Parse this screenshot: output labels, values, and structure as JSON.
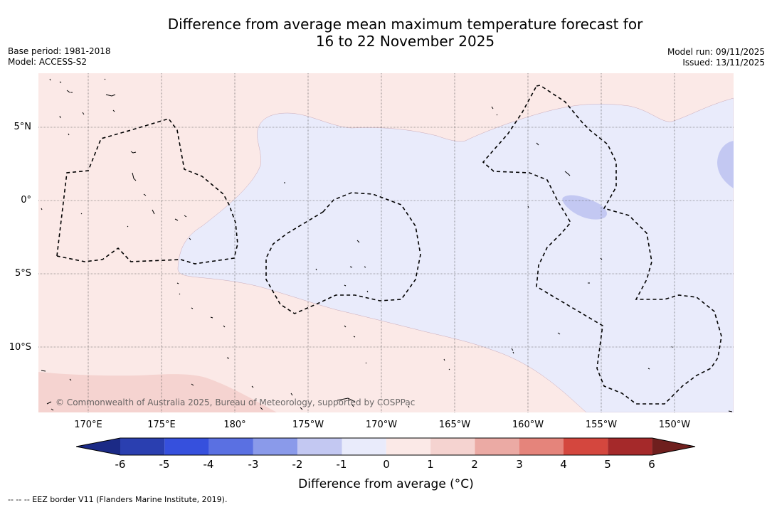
{
  "header": {
    "title_line1": "Difference from average mean maximum temperature forecast for",
    "title_line2": "16 to 22 November 2025",
    "base_period": "Base period: 1981-2018",
    "model": "Model: ACCESS-S2",
    "model_run": "Model run: 09/11/2025",
    "issued": "Issued: 13/11/2025"
  },
  "map": {
    "lat_labels": [
      "5°N",
      "0°",
      "5°S",
      "10°S"
    ],
    "lon_labels": [
      "170°E",
      "175°E",
      "180°",
      "175°W",
      "170°W",
      "165°W",
      "160°W",
      "155°W",
      "150°W"
    ],
    "credit": "© Commonwealth of Australia 2025, Bureau of Meteorology, supported by COSPPac",
    "colors": {
      "warm_light": "#fbe9e7",
      "warm_mid": "#f5d3d0",
      "cool_light": "#e9ebfb",
      "cool_mid": "#c3c8f2",
      "grid": "#555555",
      "eez": "#000000"
    }
  },
  "colorbar": {
    "tick_labels": [
      "-6",
      "-5",
      "-4",
      "-3",
      "-2",
      "-1",
      "0",
      "1",
      "2",
      "3",
      "4",
      "5",
      "6"
    ],
    "colors": [
      "#1b2a86",
      "#2a3fb0",
      "#3650dd",
      "#5a70e2",
      "#8a9aea",
      "#c3c8f2",
      "#e9ebfb",
      "#fbe9e7",
      "#f5d3d0",
      "#ebaaa4",
      "#e5847b",
      "#d4473e",
      "#a5292a",
      "#6f1f1e"
    ],
    "label": "Difference from average (°C)"
  },
  "legend": {
    "eez": "--  --  -- EEZ border V11 (Flanders Marine Institute, 2019)."
  }
}
